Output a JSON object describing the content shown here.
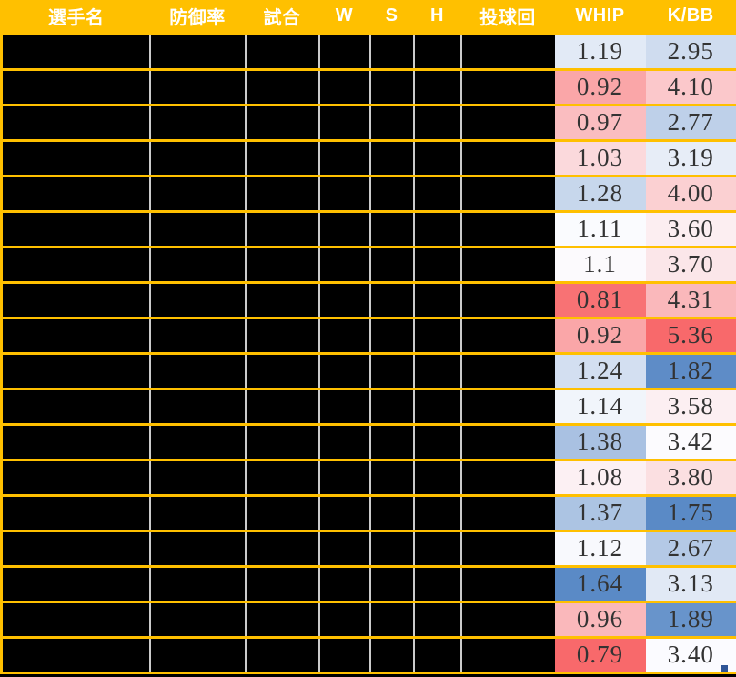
{
  "header": {
    "bg_color": "#FFC000",
    "text_color": "#FFFFFF",
    "columns": [
      "選手名",
      "防御率",
      "試合",
      "W",
      "S",
      "H",
      "投球回",
      "WHIP",
      "K/BB"
    ]
  },
  "grid": {
    "redacted_cell_color": "#000000",
    "row_border_color": "#FFC000",
    "column_divider_color": "#CBCBCB",
    "value_text_color": "#333333",
    "rows": [
      {
        "whip": "1.19",
        "whip_color": "#E2EAF6",
        "kbb": "2.95",
        "kbb_color": "#CFDCEF"
      },
      {
        "whip": "0.92",
        "whip_color": "#FAA6A8",
        "kbb": "4.10",
        "kbb_color": "#FBC8CB"
      },
      {
        "whip": "0.97",
        "whip_color": "#FABDC0",
        "kbb": "2.77",
        "kbb_color": "#BED0E9"
      },
      {
        "whip": "1.03",
        "whip_color": "#FBD9DC",
        "kbb": "3.19",
        "kbb_color": "#E7EDF7"
      },
      {
        "whip": "1.28",
        "whip_color": "#C7D7EC",
        "kbb": "4.00",
        "kbb_color": "#FBD0D2"
      },
      {
        "whip": "1.11",
        "whip_color": "#FAFBFE",
        "kbb": "3.60",
        "kbb_color": "#FCEEF1"
      },
      {
        "whip": "1.1",
        "whip_color": "#FCFAFD",
        "kbb": "3.70",
        "kbb_color": "#FBE6E9"
      },
      {
        "whip": "0.81",
        "whip_color": "#F87274",
        "kbb": "4.31",
        "kbb_color": "#FAB8BB"
      },
      {
        "whip": "0.92",
        "whip_color": "#FAA6A8",
        "kbb": "5.36",
        "kbb_color": "#F8696B"
      },
      {
        "whip": "1.24",
        "whip_color": "#D3DFF1",
        "kbb": "1.82",
        "kbb_color": "#5E8CC7"
      },
      {
        "whip": "1.14",
        "whip_color": "#F1F5FB",
        "kbb": "3.58",
        "kbb_color": "#FCEFF2"
      },
      {
        "whip": "1.38",
        "whip_color": "#A9C1E2",
        "kbb": "3.42",
        "kbb_color": "#FCFBFE"
      },
      {
        "whip": "1.08",
        "whip_color": "#FCF0F3",
        "kbb": "3.80",
        "kbb_color": "#FBDFE1"
      },
      {
        "whip": "1.37",
        "whip_color": "#ACC4E3",
        "kbb": "1.75",
        "kbb_color": "#5A8AC6"
      },
      {
        "whip": "1.12",
        "whip_color": "#F8F9FD",
        "kbb": "2.67",
        "kbb_color": "#B4C9E6"
      },
      {
        "whip": "1.64",
        "whip_color": "#5A8AC6",
        "kbb": "3.13",
        "kbb_color": "#E1E9F5"
      },
      {
        "whip": "0.96",
        "whip_color": "#FAB8BB",
        "kbb": "1.89",
        "kbb_color": "#6894CB"
      },
      {
        "whip": "0.79",
        "whip_color": "#F8696B",
        "kbb": "3.40",
        "kbb_color": "#FBFBFF"
      }
    ]
  },
  "selection": {
    "fill_handle_color": "#2F5597"
  }
}
